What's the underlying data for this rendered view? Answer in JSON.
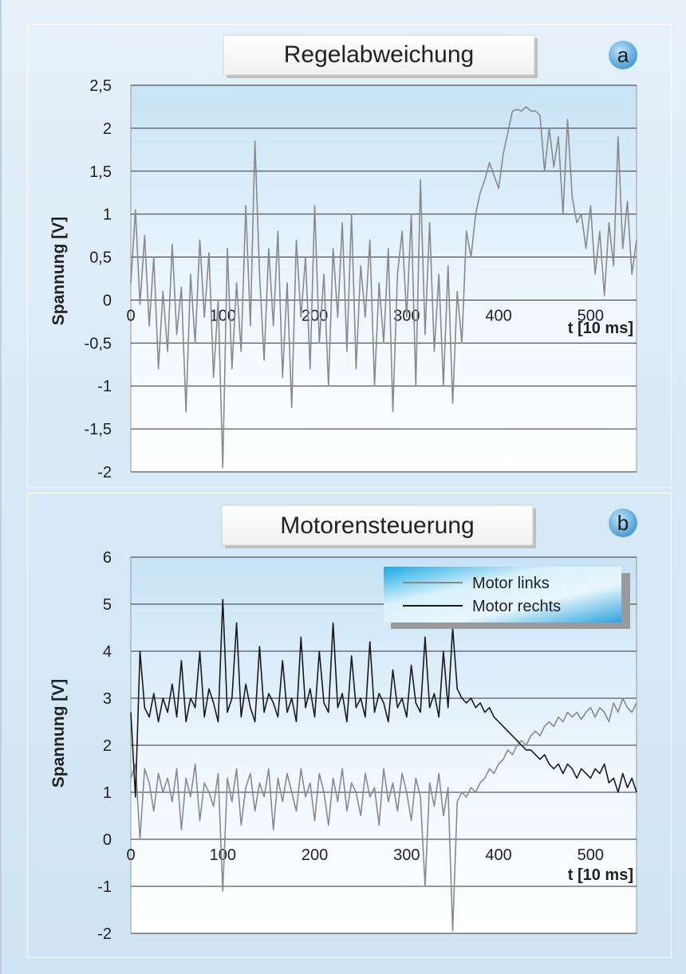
{
  "colors": {
    "page_bg": "#d6e9f6",
    "plot_bg_top": "#cfe6f6",
    "gridline": "#333333",
    "series_gray": "#8a8a8a",
    "series_dark": "#1a1a1a",
    "badge": "#5aa8dc",
    "legend_bg": "#3bb2e6"
  },
  "chart_data": [
    {
      "type": "line",
      "panel_label": "a",
      "title": "Regelabweichung",
      "xlabel": "t [10 ms]",
      "ylabel": "Spannung [V]",
      "xlim": [
        0,
        550
      ],
      "ylim": [
        -2,
        2.5
      ],
      "xticks": [
        0,
        100,
        200,
        300,
        400,
        500
      ],
      "xtick_labels": [
        "0",
        "100",
        "200",
        "300",
        "400",
        "500"
      ],
      "yticks": [
        2.5,
        2,
        1.5,
        1,
        0.5,
        0,
        -0.5,
        -1,
        -1.5,
        -2
      ],
      "ytick_labels": [
        "2,5",
        "2",
        "1,5",
        "1",
        "0,5",
        "0",
        "-0,5",
        "-1",
        "-1,5",
        "-2"
      ],
      "grid": true,
      "series": [
        {
          "color": "#8a8a8a",
          "x": [
            0,
            5,
            10,
            15,
            20,
            25,
            30,
            35,
            40,
            45,
            50,
            55,
            60,
            65,
            70,
            75,
            80,
            85,
            90,
            95,
            100,
            105,
            110,
            115,
            120,
            125,
            130,
            135,
            140,
            145,
            150,
            155,
            160,
            165,
            170,
            175,
            180,
            185,
            190,
            195,
            200,
            205,
            210,
            215,
            220,
            225,
            230,
            235,
            240,
            245,
            250,
            255,
            260,
            265,
            270,
            275,
            280,
            285,
            290,
            295,
            300,
            305,
            310,
            315,
            320,
            325,
            330,
            335,
            340,
            345,
            350,
            355,
            360,
            365,
            370,
            375,
            380,
            385,
            390,
            395,
            400,
            405,
            410,
            415,
            420,
            425,
            430,
            435,
            440,
            445,
            450,
            455,
            460,
            465,
            470,
            475,
            480,
            485,
            490,
            495,
            500,
            505,
            510,
            515,
            520,
            525,
            530,
            535,
            540,
            545,
            550
          ],
          "y": [
            0.2,
            1.05,
            -0.05,
            0.75,
            -0.3,
            0.5,
            -0.8,
            0.1,
            -0.6,
            0.65,
            -0.4,
            0.15,
            -1.3,
            0.3,
            -0.5,
            0.7,
            -0.2,
            0.55,
            -0.9,
            0.0,
            -1.95,
            0.6,
            -0.8,
            0.2,
            -0.6,
            1.1,
            -0.3,
            1.85,
            0.3,
            -0.7,
            0.6,
            -0.3,
            0.8,
            -0.9,
            0.2,
            -1.25,
            0.7,
            -0.2,
            0.5,
            -0.8,
            1.1,
            -0.5,
            0.3,
            -1.0,
            0.6,
            -0.2,
            0.9,
            -0.6,
            1.0,
            -0.8,
            0.4,
            -0.2,
            0.7,
            -1.0,
            0.2,
            -0.5,
            0.6,
            -1.3,
            0.3,
            0.8,
            -0.2,
            1.0,
            -1.0,
            1.4,
            -0.4,
            0.9,
            -0.6,
            0.3,
            -1.0,
            0.4,
            -1.2,
            0.1,
            -0.5,
            0.8,
            0.5,
            1.0,
            1.25,
            1.4,
            1.6,
            1.45,
            1.3,
            1.7,
            1.95,
            2.2,
            2.22,
            2.2,
            2.25,
            2.2,
            2.2,
            2.15,
            1.5,
            2.0,
            1.55,
            1.9,
            1.0,
            2.1,
            1.2,
            0.9,
            1.0,
            0.6,
            1.1,
            0.3,
            0.8,
            0.05,
            0.9,
            0.4,
            1.9,
            0.6,
            1.15,
            0.3,
            0.7
          ]
        }
      ]
    },
    {
      "type": "line",
      "panel_label": "b",
      "title": "Motorensteuerung",
      "xlabel": "t [10 ms]",
      "ylabel": "Spannung [V]",
      "xlim": [
        0,
        550
      ],
      "ylim": [
        -2,
        6
      ],
      "xticks": [
        0,
        100,
        200,
        300,
        400,
        500
      ],
      "xtick_labels": [
        "0",
        "100",
        "200",
        "300",
        "400",
        "500"
      ],
      "yticks": [
        6,
        5,
        4,
        3,
        2,
        1,
        0,
        -1,
        -2
      ],
      "ytick_labels": [
        "6",
        "5",
        "4",
        "3",
        "2",
        "1",
        "0",
        "-1",
        "-2"
      ],
      "grid": true,
      "legend_position": "top-right",
      "series": [
        {
          "name": "Motor links",
          "color": "#8a8a8a",
          "x": [
            0,
            5,
            10,
            15,
            20,
            25,
            30,
            35,
            40,
            45,
            50,
            55,
            60,
            65,
            70,
            75,
            80,
            85,
            90,
            95,
            100,
            105,
            110,
            115,
            120,
            125,
            130,
            135,
            140,
            145,
            150,
            155,
            160,
            165,
            170,
            175,
            180,
            185,
            190,
            195,
            200,
            205,
            210,
            215,
            220,
            225,
            230,
            235,
            240,
            245,
            250,
            255,
            260,
            265,
            270,
            275,
            280,
            285,
            290,
            295,
            300,
            305,
            310,
            315,
            320,
            325,
            330,
            335,
            340,
            345,
            350,
            355,
            360,
            365,
            370,
            375,
            380,
            385,
            390,
            395,
            400,
            405,
            410,
            415,
            420,
            425,
            430,
            435,
            440,
            445,
            450,
            455,
            460,
            465,
            470,
            475,
            480,
            485,
            490,
            495,
            500,
            505,
            510,
            515,
            520,
            525,
            530,
            535,
            540,
            545,
            550
          ],
          "y": [
            1.3,
            1.6,
            0.0,
            1.5,
            1.2,
            0.6,
            1.4,
            1.0,
            1.3,
            0.8,
            1.5,
            0.2,
            1.3,
            0.9,
            1.6,
            0.4,
            1.2,
            1.0,
            0.7,
            1.4,
            -1.1,
            1.3,
            0.8,
            1.5,
            0.3,
            1.1,
            1.4,
            0.6,
            1.2,
            0.9,
            1.5,
            0.2,
            1.3,
            0.8,
            1.4,
            1.0,
            0.6,
            1.5,
            0.9,
            1.2,
            0.4,
            1.4,
            1.0,
            0.3,
            1.3,
            0.8,
            1.5,
            0.6,
            1.2,
            1.0,
            0.5,
            1.4,
            0.9,
            1.1,
            0.3,
            1.5,
            0.8,
            1.2,
            0.6,
            1.4,
            1.0,
            0.4,
            1.3,
            0.9,
            -1.0,
            1.2,
            0.7,
            1.4,
            0.5,
            1.1,
            -1.95,
            0.8,
            1.0,
            0.9,
            1.1,
            1.0,
            1.2,
            1.3,
            1.5,
            1.4,
            1.6,
            1.7,
            1.9,
            1.8,
            2.0,
            2.1,
            2.0,
            2.2,
            2.3,
            2.2,
            2.4,
            2.5,
            2.4,
            2.6,
            2.5,
            2.7,
            2.6,
            2.7,
            2.55,
            2.7,
            2.8,
            2.6,
            2.8,
            2.7,
            2.5,
            2.9,
            2.7,
            3.0,
            2.8,
            2.7,
            2.9
          ]
        },
        {
          "name": "Motor rechts",
          "color": "#1a1a1a",
          "x": [
            0,
            5,
            10,
            15,
            20,
            25,
            30,
            35,
            40,
            45,
            50,
            55,
            60,
            65,
            70,
            75,
            80,
            85,
            90,
            95,
            100,
            105,
            110,
            115,
            120,
            125,
            130,
            135,
            140,
            145,
            150,
            155,
            160,
            165,
            170,
            175,
            180,
            185,
            190,
            195,
            200,
            205,
            210,
            215,
            220,
            225,
            230,
            235,
            240,
            245,
            250,
            255,
            260,
            265,
            270,
            275,
            280,
            285,
            290,
            295,
            300,
            305,
            310,
            315,
            320,
            325,
            330,
            335,
            340,
            345,
            350,
            355,
            360,
            365,
            370,
            375,
            380,
            385,
            390,
            395,
            400,
            405,
            410,
            415,
            420,
            425,
            430,
            435,
            440,
            445,
            450,
            455,
            460,
            465,
            470,
            475,
            480,
            485,
            490,
            495,
            500,
            505,
            510,
            515,
            520,
            525,
            530,
            535,
            540,
            545,
            550
          ],
          "y": [
            2.7,
            0.9,
            4.0,
            2.8,
            2.6,
            3.1,
            2.5,
            3.0,
            2.7,
            3.3,
            2.6,
            3.8,
            2.5,
            3.0,
            2.8,
            4.0,
            2.6,
            3.2,
            2.9,
            2.5,
            5.1,
            2.7,
            3.0,
            4.6,
            2.6,
            3.3,
            2.8,
            2.5,
            4.1,
            2.7,
            3.1,
            2.9,
            2.6,
            3.8,
            2.7,
            3.0,
            2.5,
            4.3,
            2.8,
            3.2,
            2.6,
            4.0,
            2.9,
            2.7,
            4.6,
            2.8,
            3.1,
            2.5,
            3.9,
            2.8,
            3.0,
            2.6,
            4.2,
            2.7,
            3.1,
            2.9,
            2.5,
            3.6,
            2.8,
            3.0,
            2.6,
            3.7,
            2.9,
            2.7,
            4.3,
            2.8,
            3.1,
            2.6,
            4.0,
            2.8,
            4.5,
            3.2,
            3.0,
            2.9,
            3.0,
            2.8,
            2.9,
            2.7,
            2.8,
            2.6,
            2.5,
            2.4,
            2.3,
            2.2,
            2.1,
            2.0,
            1.9,
            1.9,
            1.8,
            1.7,
            1.8,
            1.6,
            1.5,
            1.6,
            1.4,
            1.6,
            1.5,
            1.3,
            1.5,
            1.4,
            1.3,
            1.5,
            1.4,
            1.6,
            1.2,
            1.3,
            1.0,
            1.4,
            1.1,
            1.3,
            1.0
          ]
        }
      ]
    }
  ]
}
